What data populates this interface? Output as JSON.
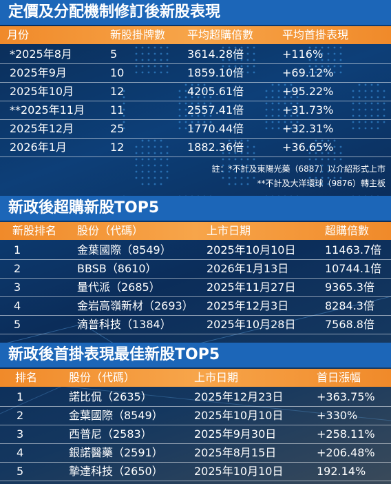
{
  "colors": {
    "title_bg": "#1c66b8",
    "header_bg": "#f08a2a",
    "text": "#ffffff"
  },
  "section1": {
    "title": "定價及分配機制修訂後新股表現",
    "headers": [
      "月份",
      "新股掛牌數",
      "平均超購倍數",
      "平均首掛表現"
    ],
    "rows": [
      [
        "*2025年8月",
        "5",
        "3614.28倍",
        "+116%"
      ],
      [
        "2025年9月",
        "10",
        "1859.10倍",
        "+69.12%"
      ],
      [
        "2025年10月",
        "12",
        "4205.61倍",
        "+95.22%"
      ],
      [
        "**2025年11月",
        "11",
        "2557.41倍",
        "+31.73%"
      ],
      [
        "2025年12月",
        "25",
        "1770.44倍",
        "+32.31%"
      ],
      [
        "2026年1月",
        "12",
        "1882.36倍",
        "+36.65%"
      ]
    ],
    "note1": "註：*不計及東陽光藥（6887）以介紹形式上市",
    "note2": "**不計及大洋環球（9876）轉主板"
  },
  "section2": {
    "title": "新政後超購新股TOP5",
    "headers": [
      "新股排名",
      "股份（代碼）",
      "上市日期",
      "超購倍數"
    ],
    "rows": [
      [
        "1",
        "金葉國際（8549）",
        "2025年10月10日",
        "11463.7倍"
      ],
      [
        "2",
        "BBSB（8610）",
        "2026年1月13日",
        "10744.1倍"
      ],
      [
        "3",
        "量代派（2685）",
        "2025年11月27日",
        "9365.3倍"
      ],
      [
        "4",
        "金岩高嶺新材（2693）",
        "2025年12月3日",
        "8284.3倍"
      ],
      [
        "5",
        "滴普科技（1384）",
        "2025年10月28日",
        "7568.8倍"
      ]
    ]
  },
  "section3": {
    "title": "新政後首掛表現最佳新股TOP5",
    "headers": [
      "排名",
      "股份（代碼）",
      "上市日期",
      "首日漲幅"
    ],
    "rows": [
      [
        "1",
        "諾比侃（2635）",
        "2025年12月23日",
        "+363.75%"
      ],
      [
        "2",
        "金葉國際（8549）",
        "2025年10月10日",
        "+330%"
      ],
      [
        "3",
        "西普尼（2583）",
        "2025年9月30日",
        "+258.11%"
      ],
      [
        "4",
        "銀諾醫藥（2591）",
        "2025年8月15日",
        "+206.48%"
      ],
      [
        "5",
        "摯達科技（2650）",
        "2025年10月10日",
        "192.14%"
      ]
    ]
  }
}
